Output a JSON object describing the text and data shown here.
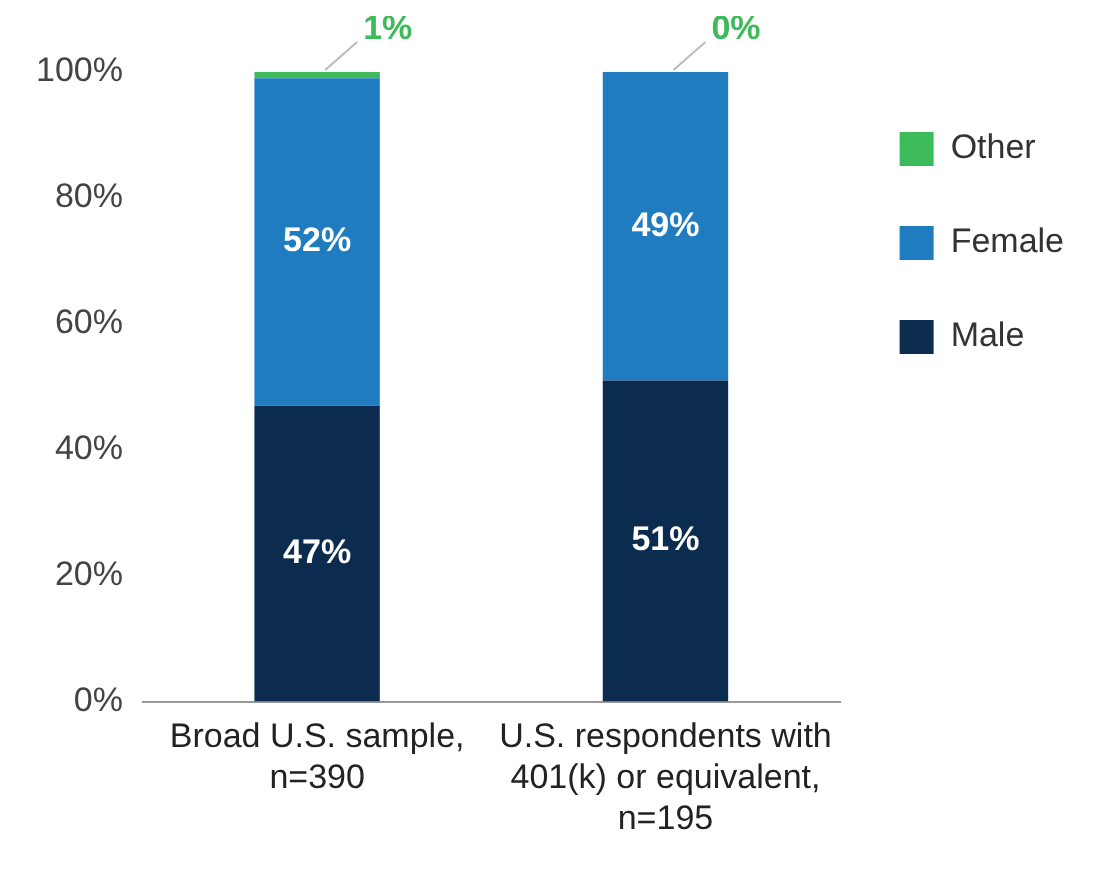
{
  "chart_data": {
    "type": "bar",
    "stacked": true,
    "categories": [
      "Broad U.S. sample, n=390",
      "U.S. respondents with 401(k) or equivalent, n=195"
    ],
    "series": [
      {
        "name": "Male",
        "color": "#0b2c4f",
        "values": [
          47,
          51
        ],
        "value_labels": [
          "47%",
          "51%"
        ]
      },
      {
        "name": "Female",
        "color": "#1f7cc0",
        "values": [
          52,
          49
        ],
        "value_labels": [
          "52%",
          "49%"
        ]
      },
      {
        "name": "Other",
        "color": "#3dba5a",
        "values": [
          1,
          0
        ],
        "value_labels": [
          "1%",
          "0%"
        ]
      }
    ],
    "ylim": [
      0,
      100
    ],
    "yticks": [
      {
        "value": 0,
        "label": "0%"
      },
      {
        "value": 20,
        "label": "20%"
      },
      {
        "value": 40,
        "label": "40%"
      },
      {
        "value": 60,
        "label": "60%"
      },
      {
        "value": 80,
        "label": "80%"
      },
      {
        "value": 100,
        "label": "100%"
      }
    ],
    "grid": false,
    "legend": "right"
  }
}
